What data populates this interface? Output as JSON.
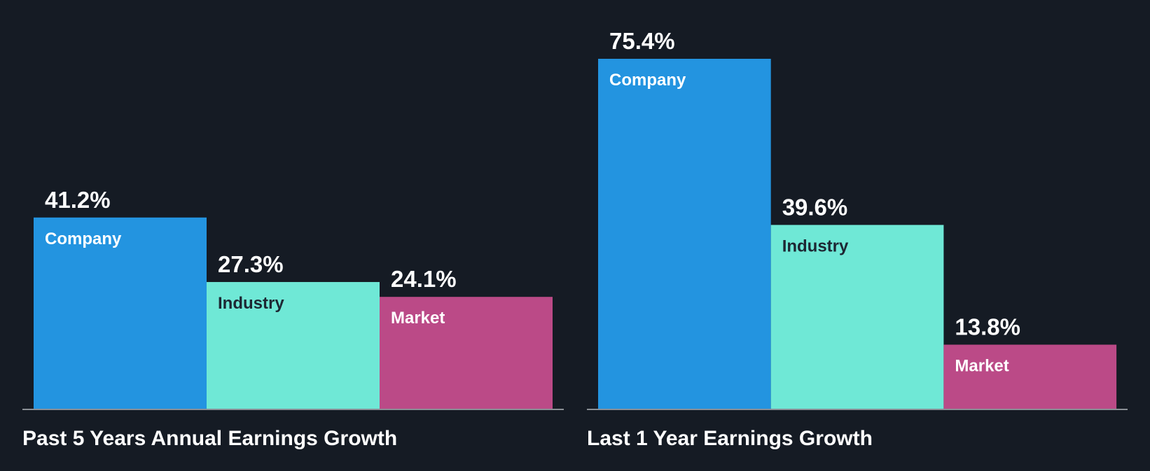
{
  "colors": {
    "background": "#151b24",
    "company": "#2394e0",
    "industry": "#6fe8d6",
    "market": "#bb4a87",
    "baseline": "#8a8f96",
    "label_on_dark": "#ffffff",
    "label_on_light": "#1d2733"
  },
  "chart_data": [
    {
      "type": "bar",
      "title": "Past 5 Years Annual Earnings Growth",
      "categories": [
        "Company",
        "Industry",
        "Market"
      ],
      "values": [
        41.2,
        27.3,
        24.1
      ],
      "value_labels": [
        "41.2%",
        "27.3%",
        "24.1%"
      ],
      "ylim": [
        0,
        80
      ],
      "grid": false,
      "legend": "none"
    },
    {
      "type": "bar",
      "title": "Last 1 Year Earnings Growth",
      "categories": [
        "Company",
        "Industry",
        "Market"
      ],
      "values": [
        75.4,
        39.6,
        13.8
      ],
      "value_labels": [
        "75.4%",
        "39.6%",
        "13.8%"
      ],
      "ylim": [
        0,
        80
      ],
      "grid": false,
      "legend": "none"
    }
  ]
}
